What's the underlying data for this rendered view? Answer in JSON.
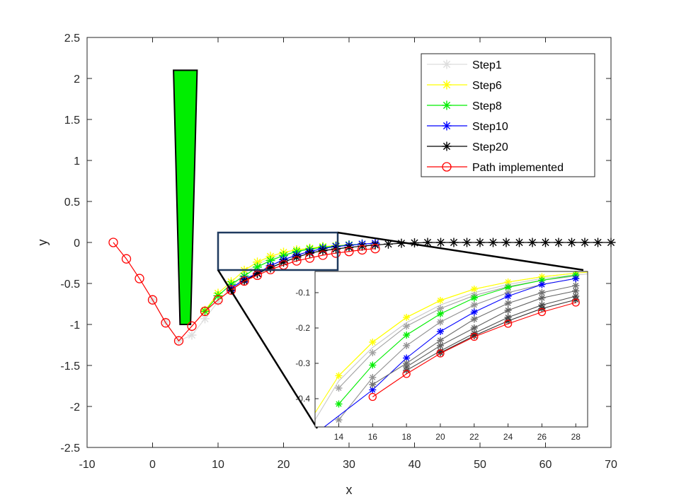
{
  "chart_data": [
    {
      "type": "line",
      "title": "",
      "xlabel": "x",
      "ylabel": "y",
      "xlim": [
        -10,
        70
      ],
      "ylim": [
        -2.5,
        2.5
      ],
      "xticks": [
        -10,
        0,
        10,
        20,
        30,
        40,
        50,
        60,
        70
      ],
      "yticks": [
        -2.5,
        -2,
        -1.5,
        -1,
        -0.5,
        0,
        0.5,
        1,
        1.5,
        2,
        2.5
      ],
      "xtick_labels": [
        "-10",
        "0",
        "10",
        "20",
        "30",
        "40",
        "50",
        "60",
        "70"
      ],
      "ytick_labels": [
        "-2.5",
        "-2",
        "-1.5",
        "-1",
        "-0.5",
        "0",
        "0.5",
        "1",
        "1.5",
        "2",
        "2.5"
      ],
      "grid": false,
      "legend_position": "top-right",
      "obstacle": {
        "shape": "polygon",
        "color": "#00ee00",
        "vertices": [
          [
            3.2,
            2.1
          ],
          [
            6.8,
            2.1
          ],
          [
            5.8,
            -1.0
          ],
          [
            4.2,
            -1.0
          ]
        ]
      },
      "zoom_box": {
        "x": [
          10.3,
          28.7
        ],
        "y": [
          -0.34,
          0.12
        ]
      },
      "series": [
        {
          "name": "Step1",
          "color": "#dddddd",
          "marker": "asterisk",
          "points": [
            [
              0,
              -0.7
            ],
            [
              2,
              -0.97
            ],
            [
              4,
              -1.2
            ],
            [
              6,
              -1.13
            ],
            [
              8,
              -0.93
            ],
            [
              10,
              -0.72
            ],
            [
              12,
              -0.55
            ],
            [
              14,
              -0.37
            ],
            [
              16,
              -0.27
            ],
            [
              18,
              -0.19
            ],
            [
              20,
              -0.15
            ],
            [
              22,
              -0.11
            ],
            [
              24,
              -0.08
            ],
            [
              26,
              -0.06
            ],
            [
              28,
              -0.05
            ]
          ]
        },
        {
          "name": "Step6",
          "color": "#ffff00",
          "marker": "asterisk",
          "points": [
            [
              8,
              -0.83
            ],
            [
              10,
              -0.62
            ],
            [
              12,
              -0.48
            ],
            [
              14,
              -0.34
            ],
            [
              16,
              -0.24
            ],
            [
              18,
              -0.17
            ],
            [
              20,
              -0.12
            ],
            [
              22,
              -0.09
            ],
            [
              24,
              -0.07
            ],
            [
              26,
              -0.05
            ],
            [
              28,
              -0.04
            ],
            [
              30,
              -0.03
            ]
          ]
        },
        {
          "name": "Step8",
          "color": "#00ee00",
          "marker": "asterisk",
          "points": [
            [
              8,
              -0.84
            ],
            [
              10,
              -0.65
            ],
            [
              12,
              -0.51
            ],
            [
              14,
              -0.41
            ],
            [
              16,
              -0.3
            ],
            [
              18,
              -0.22
            ],
            [
              20,
              -0.16
            ],
            [
              22,
              -0.11
            ],
            [
              24,
              -0.08
            ],
            [
              26,
              -0.06
            ],
            [
              28,
              -0.045
            ],
            [
              30,
              -0.03
            ],
            [
              32,
              -0.02
            ]
          ]
        },
        {
          "name": "Step10",
          "color": "#0000ff",
          "marker": "asterisk",
          "points": [
            [
              12,
              -0.56
            ],
            [
              14,
              -0.45
            ],
            [
              16,
              -0.375
            ],
            [
              18,
              -0.285
            ],
            [
              20,
              -0.21
            ],
            [
              22,
              -0.155
            ],
            [
              24,
              -0.11
            ],
            [
              26,
              -0.075
            ],
            [
              28,
              -0.05
            ],
            [
              30,
              -0.035
            ],
            [
              32,
              -0.02
            ],
            [
              34,
              -0.01
            ]
          ]
        },
        {
          "name": "Step20",
          "color": "#000000",
          "marker": "asterisk",
          "points": [
            [
              12,
              -0.58
            ],
            [
              14,
              -0.47
            ],
            [
              16,
              -0.38
            ],
            [
              18,
              -0.31
            ],
            [
              20,
              -0.24
            ],
            [
              22,
              -0.18
            ],
            [
              24,
              -0.13
            ],
            [
              26,
              -0.1
            ],
            [
              28,
              -0.08
            ],
            [
              30,
              -0.06
            ],
            [
              32,
              -0.045
            ],
            [
              34,
              -0.03
            ],
            [
              36,
              -0.02
            ],
            [
              38,
              -0.01
            ],
            [
              40,
              -0.005
            ],
            [
              42,
              0
            ],
            [
              44,
              0
            ],
            [
              46,
              0
            ],
            [
              48,
              0
            ],
            [
              50,
              0
            ],
            [
              52,
              0
            ],
            [
              54,
              0
            ],
            [
              56,
              0
            ],
            [
              58,
              0
            ],
            [
              60,
              0
            ],
            [
              62,
              0
            ],
            [
              64,
              0
            ],
            [
              66,
              0
            ],
            [
              68,
              0
            ],
            [
              70,
              0
            ]
          ]
        },
        {
          "name": "Path implemented",
          "color": "#ff0000",
          "marker": "circle",
          "points": [
            [
              -6,
              0
            ],
            [
              -4,
              -0.2
            ],
            [
              -2,
              -0.44
            ],
            [
              0,
              -0.7
            ],
            [
              2,
              -0.98
            ],
            [
              4,
              -1.2
            ],
            [
              6,
              -1.02
            ],
            [
              8,
              -0.84
            ],
            [
              10,
              -0.7
            ],
            [
              12,
              -0.58
            ],
            [
              14,
              -0.47
            ],
            [
              16,
              -0.4
            ],
            [
              18,
              -0.33
            ],
            [
              20,
              -0.275
            ],
            [
              22,
              -0.225
            ],
            [
              24,
              -0.19
            ],
            [
              26,
              -0.155
            ],
            [
              28,
              -0.13
            ],
            [
              30,
              -0.11
            ],
            [
              32,
              -0.09
            ],
            [
              34,
              -0.075
            ]
          ]
        }
      ]
    },
    {
      "type": "line",
      "title": "",
      "xlabel": "",
      "ylabel": "",
      "xlim": [
        12.6,
        28.7
      ],
      "ylim": [
        -0.48,
        -0.04
      ],
      "xticks": [
        14,
        16,
        18,
        20,
        22,
        24,
        26,
        28
      ],
      "yticks": [
        -0.4,
        -0.3,
        -0.2,
        -0.1
      ],
      "xtick_labels": [
        "14",
        "16",
        "18",
        "20",
        "22",
        "24",
        "26",
        "28"
      ],
      "ytick_labels": [
        "-0.4",
        "-0.3",
        "-0.2",
        "-0.1"
      ],
      "grid": false,
      "series": [
        {
          "color": "#ffff00",
          "marker": "none",
          "points": [
            [
              12.6,
              -0.44
            ],
            [
              14,
              -0.335
            ],
            [
              16,
              -0.24
            ],
            [
              18,
              -0.17
            ],
            [
              20,
              -0.122
            ],
            [
              22,
              -0.09
            ],
            [
              24,
              -0.07
            ],
            [
              26,
              -0.055
            ],
            [
              28,
              -0.045
            ],
            [
              28.7,
              -0.042
            ]
          ]
        },
        {
          "color": "#ffff00",
          "marker": "asterisk",
          "points": [
            [
              14,
              -0.335
            ],
            [
              16,
              -0.24
            ],
            [
              18,
              -0.17
            ],
            [
              20,
              -0.122
            ],
            [
              22,
              -0.09
            ],
            [
              24,
              -0.07
            ],
            [
              26,
              -0.055
            ],
            [
              28,
              -0.045
            ]
          ]
        },
        {
          "color": "#c8c8c8",
          "marker": "none",
          "points": [
            [
              12.6,
              -0.46
            ],
            [
              14,
              -0.35
            ],
            [
              16,
              -0.255
            ],
            [
              18,
              -0.185
            ],
            [
              20,
              -0.135
            ],
            [
              22,
              -0.1
            ],
            [
              24,
              -0.077
            ],
            [
              26,
              -0.06
            ],
            [
              28,
              -0.05
            ],
            [
              28.7,
              -0.047
            ]
          ]
        },
        {
          "color": "#a0a0a0",
          "marker": "asterisk",
          "points": [
            [
              14,
              -0.37
            ],
            [
              16,
              -0.27
            ],
            [
              18,
              -0.195
            ],
            [
              20,
              -0.145
            ],
            [
              22,
              -0.108
            ],
            [
              24,
              -0.083
            ],
            [
              26,
              -0.065
            ],
            [
              28,
              -0.053
            ]
          ]
        },
        {
          "color": "#00ee00",
          "marker": "asterisk",
          "points": [
            [
              14,
              -0.415
            ],
            [
              16,
              -0.305
            ],
            [
              18,
              -0.22
            ],
            [
              20,
              -0.16
            ],
            [
              22,
              -0.115
            ],
            [
              24,
              -0.085
            ],
            [
              26,
              -0.065
            ],
            [
              28,
              -0.05
            ]
          ]
        },
        {
          "color": "#909090",
          "marker": "asterisk",
          "points": [
            [
              14,
              -0.46
            ],
            [
              16,
              -0.34
            ],
            [
              18,
              -0.25
            ],
            [
              20,
              -0.183
            ],
            [
              22,
              -0.135
            ],
            [
              24,
              -0.1
            ],
            [
              26,
              -0.077
            ],
            [
              28,
              -0.06
            ]
          ]
        },
        {
          "color": "#0000ff",
          "marker": "asterisk",
          "points": [
            [
              12.6,
              -0.5
            ],
            [
              16,
              -0.375
            ],
            [
              18,
              -0.285
            ],
            [
              20,
              -0.21
            ],
            [
              22,
              -0.155
            ],
            [
              24,
              -0.11
            ],
            [
              26,
              -0.077
            ],
            [
              28,
              -0.06
            ]
          ]
        },
        {
          "color": "#707070",
          "marker": "asterisk",
          "points": [
            [
              16,
              -0.36
            ],
            [
              18,
              -0.3
            ],
            [
              20,
              -0.235
            ],
            [
              22,
              -0.175
            ],
            [
              24,
              -0.13
            ],
            [
              26,
              -0.1
            ],
            [
              28,
              -0.08
            ]
          ]
        },
        {
          "color": "#606060",
          "marker": "asterisk",
          "points": [
            [
              18,
              -0.31
            ],
            [
              20,
              -0.25
            ],
            [
              22,
              -0.2
            ],
            [
              24,
              -0.15
            ],
            [
              26,
              -0.115
            ],
            [
              28,
              -0.095
            ]
          ]
        },
        {
          "color": "#505050",
          "marker": "asterisk",
          "points": [
            [
              18,
              -0.32
            ],
            [
              20,
              -0.265
            ],
            [
              22,
              -0.215
            ],
            [
              24,
              -0.17
            ],
            [
              26,
              -0.135
            ],
            [
              28,
              -0.11
            ]
          ]
        },
        {
          "color": "#303030",
          "marker": "asterisk",
          "points": [
            [
              20,
              -0.27
            ],
            [
              22,
              -0.222
            ],
            [
              24,
              -0.18
            ],
            [
              26,
              -0.145
            ],
            [
              28,
              -0.12
            ]
          ]
        },
        {
          "color": "#ff0000",
          "marker": "circle",
          "points": [
            [
              16,
              -0.395
            ],
            [
              18,
              -0.33
            ],
            [
              20,
              -0.272
            ],
            [
              22,
              -0.225
            ],
            [
              24,
              -0.188
            ],
            [
              26,
              -0.155
            ],
            [
              28,
              -0.128
            ]
          ]
        }
      ]
    }
  ]
}
